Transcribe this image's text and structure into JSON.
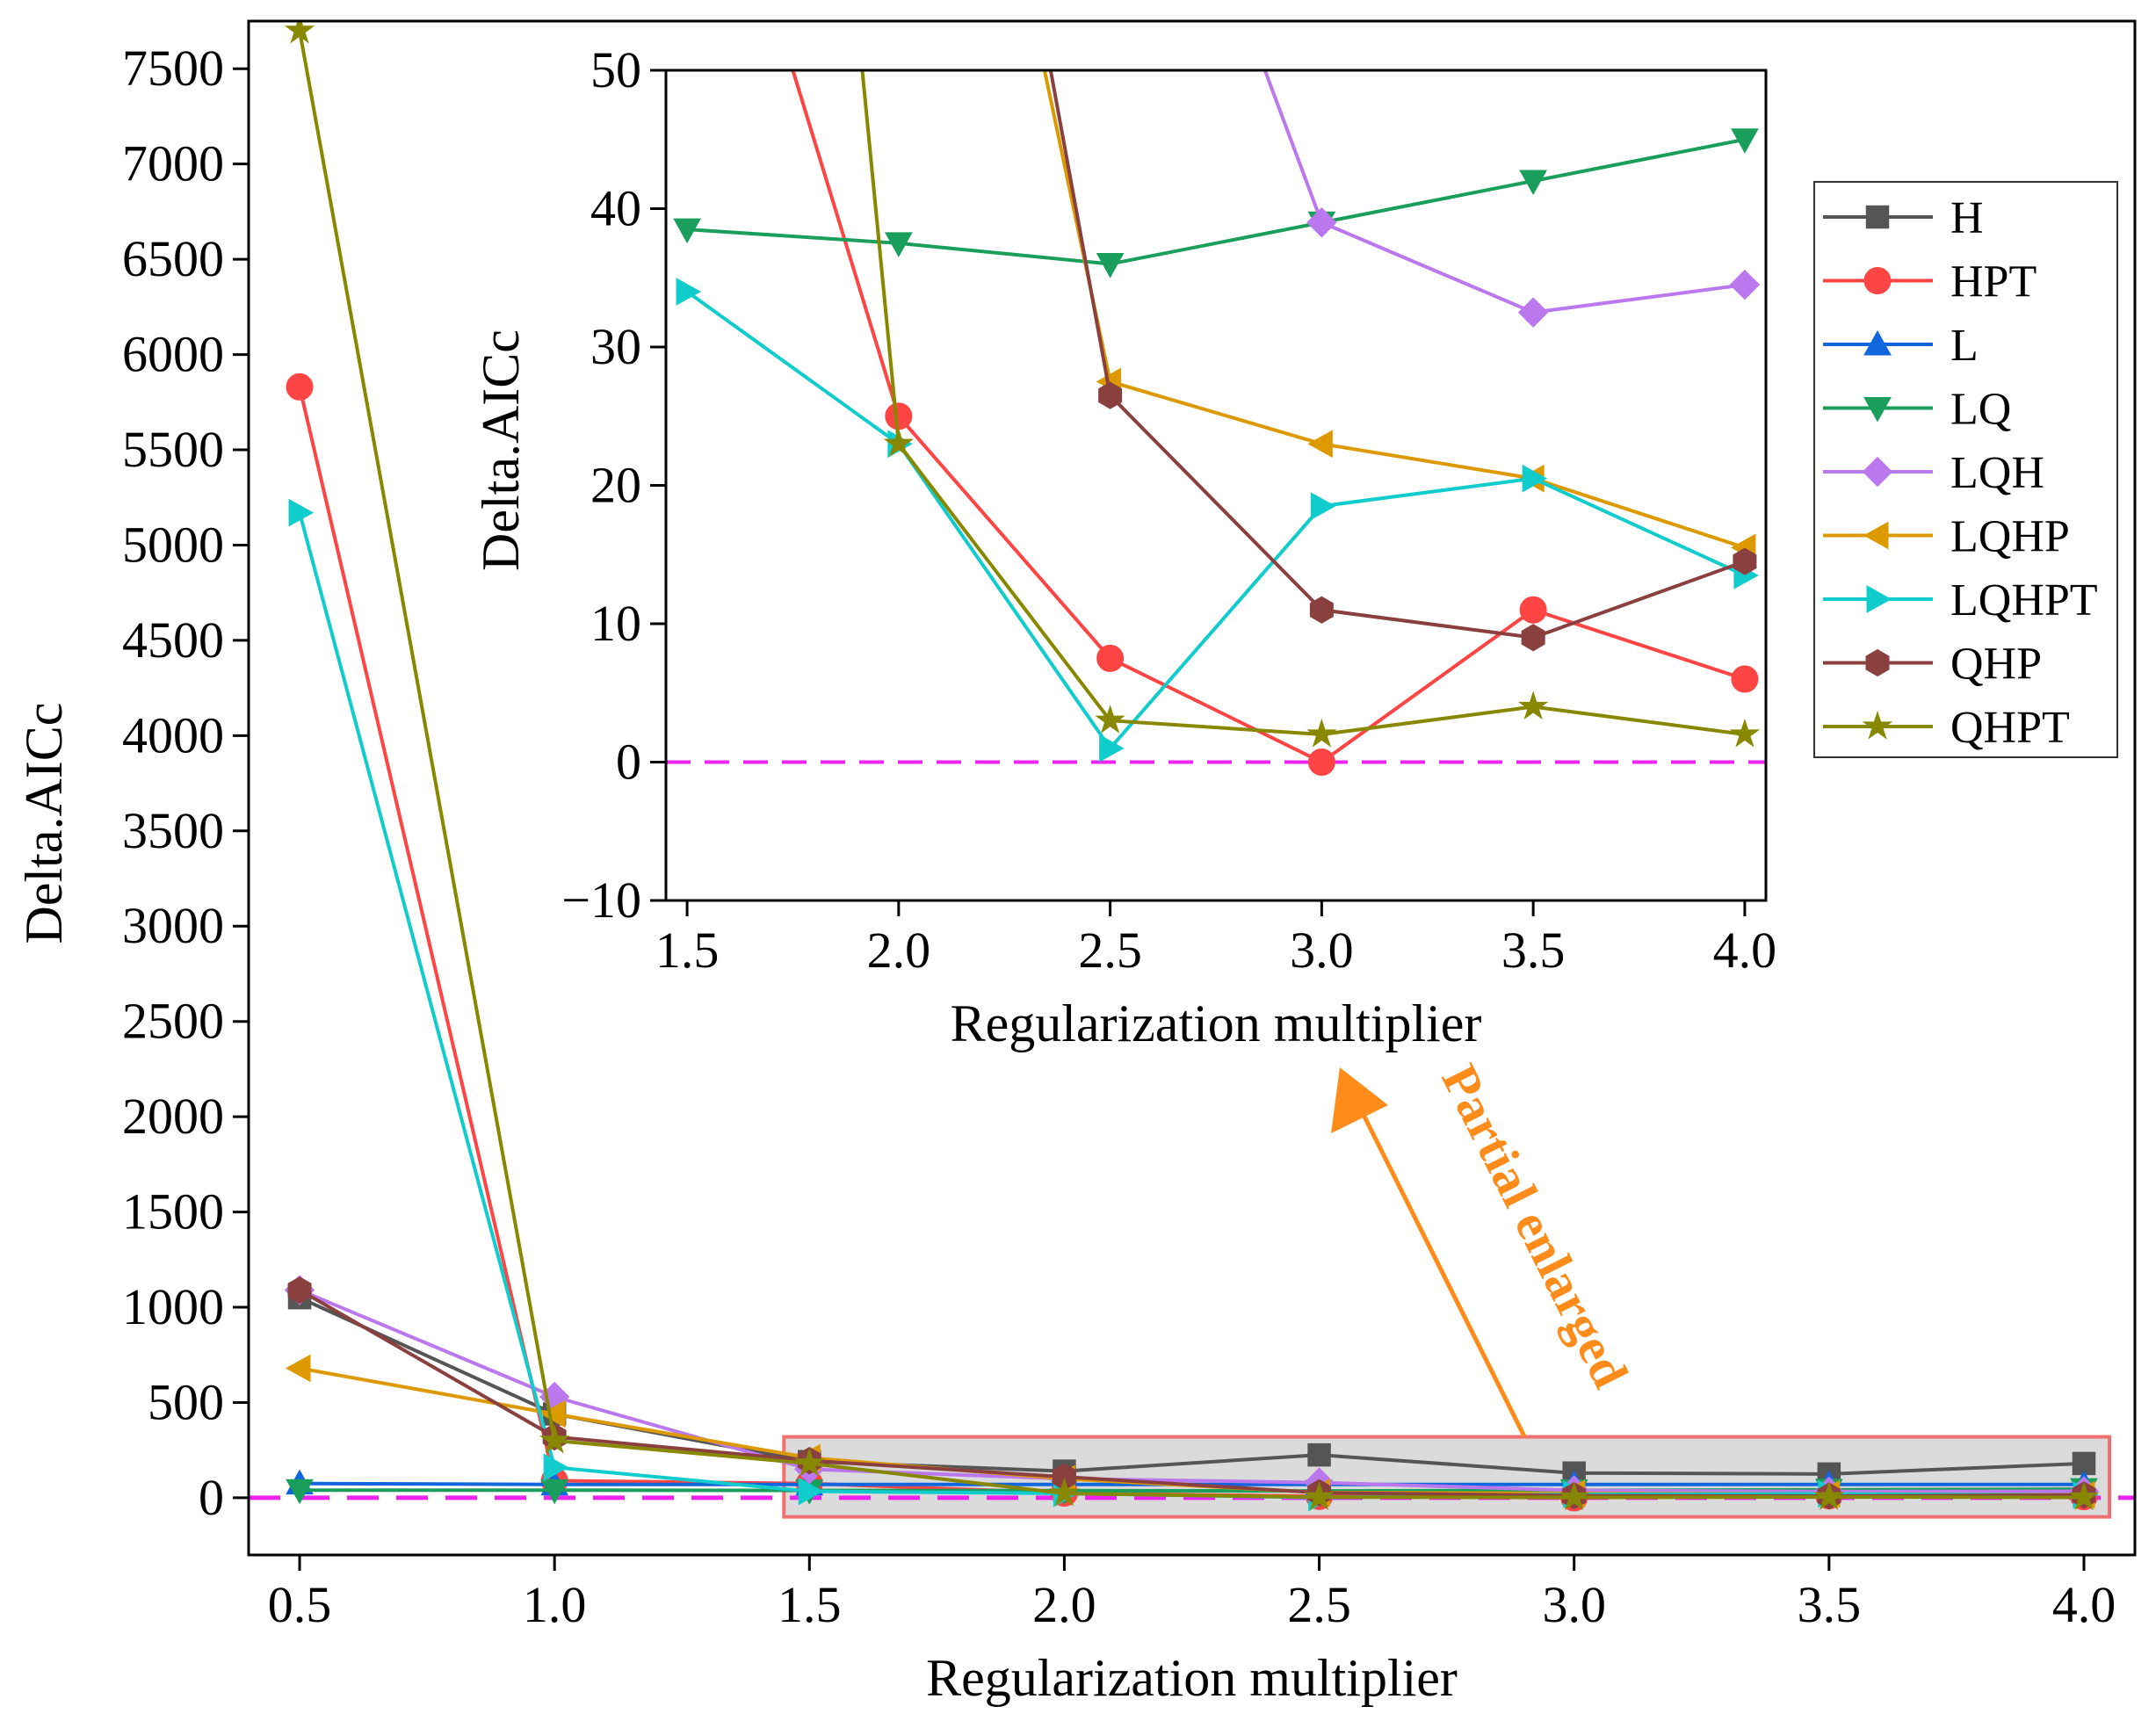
{
  "chart_data": {
    "type": "line",
    "main": {
      "x": [
        0.5,
        1.0,
        1.5,
        2.0,
        2.5,
        3.0,
        3.5,
        4.0
      ],
      "xticks": [
        "0.5",
        "1.0",
        "1.5",
        "2.0",
        "2.5",
        "3.0",
        "3.5",
        "4.0"
      ],
      "yticks": [
        "0",
        "500",
        "1000",
        "1500",
        "2000",
        "2500",
        "3000",
        "3500",
        "4000",
        "4500",
        "5000",
        "5500",
        "6000",
        "6500",
        "7000",
        "7500"
      ],
      "xlim": [
        0.4,
        4.1
      ],
      "ylim": [
        -300,
        7750
      ],
      "xlabel": "Regularization multiplier",
      "ylabel": "Delta.AICc",
      "reference_line_y": 0,
      "series": [
        {
          "name": "H",
          "color": "#555555",
          "marker": "square",
          "values": [
            1050,
            440,
            190,
            140,
            225,
            130,
            125,
            180
          ]
        },
        {
          "name": "HPT",
          "color": "#ff4444",
          "marker": "circle",
          "values": [
            5830,
            90,
            75,
            25,
            7.5,
            0,
            11,
            6
          ]
        },
        {
          "name": "L",
          "color": "#1166dd",
          "marker": "triangle-up",
          "values": [
            75,
            70,
            70,
            70,
            70,
            70,
            70,
            70
          ]
        },
        {
          "name": "LQ",
          "color": "#1a9e5c",
          "marker": "triangle-down",
          "values": [
            40,
            40,
            38.5,
            37.5,
            36,
            39,
            42,
            45
          ]
        },
        {
          "name": "LQH",
          "color": "#bb77ee",
          "marker": "diamond",
          "values": [
            1090,
            530,
            150,
            100,
            80,
            39,
            32.5,
            34.5
          ]
        },
        {
          "name": "LQHP",
          "color": "#dd9900",
          "marker": "triangle-left",
          "values": [
            680,
            440,
            210,
            100,
            27.5,
            23,
            20.5,
            15.5
          ]
        },
        {
          "name": "LQHPT",
          "color": "#11cccc",
          "marker": "triangle-right",
          "values": [
            5170,
            160,
            34,
            23,
            1,
            18.5,
            20.5,
            13.5
          ]
        },
        {
          "name": "QHP",
          "color": "#8b4040",
          "marker": "hexagon",
          "values": [
            1090,
            320,
            195,
            110,
            26.5,
            11,
            9,
            14.5
          ]
        },
        {
          "name": "QHPT",
          "color": "#888800",
          "marker": "star",
          "values": [
            7700,
            300,
            180,
            23,
            3,
            2,
            4,
            2
          ]
        }
      ]
    },
    "inset": {
      "x": [
        1.5,
        2.0,
        2.5,
        3.0,
        3.5,
        4.0
      ],
      "xticks": [
        "1.5",
        "2.0",
        "2.5",
        "3.0",
        "3.5",
        "4.0"
      ],
      "yticks": [
        "-10",
        "0",
        "10",
        "20",
        "30",
        "40",
        "50"
      ],
      "xlim": [
        1.45,
        4.05
      ],
      "ylim": [
        -10,
        50
      ],
      "xlabel": "Regularization multiplier",
      "ylabel": "Delta.AICc",
      "reference_line_y": 0
    },
    "legend": {
      "placement": "top-right"
    },
    "annotation": {
      "text": "Partial enlarged",
      "color": "#ff8c1a"
    },
    "highlight_region": {
      "x_from": 1.45,
      "x_to": 4.05,
      "y_from": -100,
      "y_to": 320
    }
  }
}
